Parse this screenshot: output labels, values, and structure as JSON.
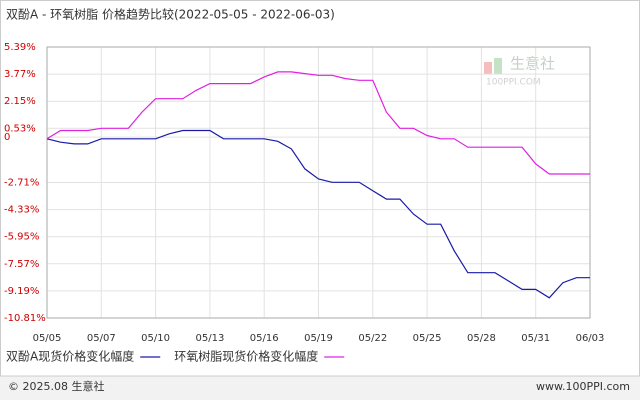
{
  "chart_data": {
    "type": "line",
    "title": "双酚A - 环氧树脂 价格趋势比较(2022-05-05 - 2022-06-03)",
    "categories": [
      "05/05",
      null,
      null,
      null,
      "05/07",
      null,
      null,
      null,
      "05/10",
      null,
      null,
      null,
      "05/13",
      null,
      null,
      null,
      "05/16",
      null,
      null,
      null,
      "05/19",
      null,
      null,
      null,
      "05/22",
      null,
      null,
      null,
      "05/25",
      null,
      null,
      null,
      "05/28",
      null,
      null,
      null,
      "05/31",
      null,
      null,
      null,
      "06/03"
    ],
    "series": [
      {
        "name": "双酚A现货价格变化幅度",
        "color": "#1a1aa6",
        "values": [
          -0.1,
          -0.3,
          -0.4,
          -0.4,
          -0.1,
          -0.1,
          -0.1,
          -0.1,
          -0.1,
          0.2,
          0.4,
          0.4,
          0.4,
          -0.1,
          -0.1,
          -0.1,
          -0.1,
          -0.25,
          -0.7,
          -1.9,
          -2.5,
          -2.7,
          -2.7,
          -2.7,
          -3.2,
          -3.7,
          -3.7,
          -4.6,
          -5.2,
          -5.2,
          -6.8,
          -8.1,
          -8.1,
          -8.1,
          -8.6,
          -9.1,
          -9.1,
          -9.6,
          -8.7,
          -8.4,
          -8.4
        ]
      },
      {
        "name": "环氧树脂现货价格变化幅度",
        "color": "#e020e0",
        "values": [
          -0.1,
          0.4,
          0.4,
          0.4,
          0.53,
          0.53,
          0.53,
          1.5,
          2.3,
          2.3,
          2.3,
          2.8,
          3.2,
          3.2,
          3.2,
          3.2,
          3.6,
          3.9,
          3.9,
          3.8,
          3.7,
          3.7,
          3.5,
          3.4,
          3.4,
          1.5,
          0.53,
          0.53,
          0.1,
          -0.1,
          -0.1,
          -0.6,
          -0.6,
          -0.6,
          -0.6,
          -0.6,
          -1.6,
          -2.2,
          -2.2,
          -2.2,
          -2.2
        ]
      }
    ],
    "ylim": [
      -10.81,
      5.39
    ],
    "yticks": [
      {
        "value": 5.39,
        "label": "5.39%"
      },
      {
        "value": 3.77,
        "label": "3.77%"
      },
      {
        "value": 2.15,
        "label": "2.15%"
      },
      {
        "value": 0.53,
        "label": "0.53%"
      },
      0,
      {
        "value": -2.71,
        "label": "-2.71%"
      },
      {
        "value": -4.33,
        "label": "-4.33%"
      },
      {
        "value": -5.95,
        "label": "-5.95%"
      },
      {
        "value": -7.57,
        "label": "-7.57%"
      },
      {
        "value": -9.19,
        "label": "-9.19%"
      },
      {
        "value": -10.81,
        "label": "-10.81%"
      }
    ],
    "grid": true,
    "watermark": {
      "name": "生意社",
      "site": "100PPI.COM"
    }
  },
  "footer": {
    "copyright": "© 2025.08 生意社",
    "site": "www.100PPI.com"
  }
}
